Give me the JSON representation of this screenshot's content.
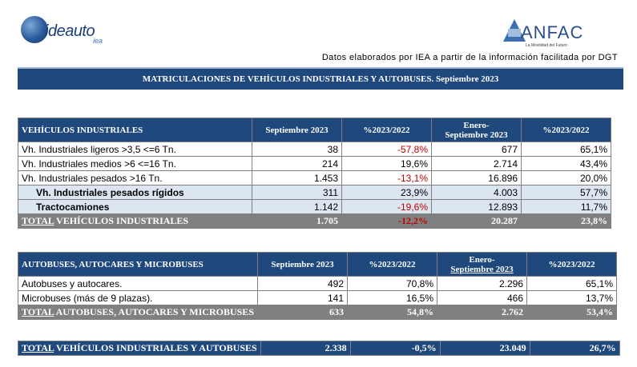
{
  "logos": {
    "left_brand": "ideauto",
    "left_sub": "iea",
    "right_brand": "ANFAC",
    "right_tag": "La Movilidad del Futuro"
  },
  "source_note": "Datos elaborados por IEA a partir de la información facilitada por DGT",
  "banner_title": "MATRICULACIONES DE VEHÍCULOS INDUSTRIALES Y AUTOBUSES.  Septiembre 2023",
  "table1": {
    "headers": [
      "VEHÍCULOS INDUSTRIALES",
      "Septiembre 2023",
      "%2023/2022",
      "Enero-Septiembre 2023",
      "%2023/2022"
    ],
    "header_ene_line1": "Enero-",
    "header_ene_line2": "Septiembre 2023",
    "rows": [
      {
        "label": "Vh. Industriales ligeros >3,5 <=6 Tn.",
        "sep": "38",
        "pct": "-57,8%",
        "ene": "677",
        "pct2": "65,1%"
      },
      {
        "label": "Vh. Industriales medios >6  <=16 Tn.",
        "sep": "214",
        "pct": "19,6%",
        "ene": "2.714",
        "pct2": "43,4%"
      },
      {
        "label": "Vh. Industriales  pesados >16 Tn.",
        "sep": "1.453",
        "pct": "-13,1%",
        "ene": "16.896",
        "pct2": "20,0%"
      },
      {
        "label": "Vh. Industriales pesados rígidos",
        "sep": "311",
        "pct": "23,9%",
        "ene": "4.003",
        "pct2": "57,7%"
      },
      {
        "label": "Tractocamiones",
        "sep": "1.142",
        "pct": "-19,6%",
        "ene": "12.893",
        "pct2": "11,7%"
      }
    ],
    "total": {
      "label_a": "TOTAL",
      "label_b": " VEHÍCULOS INDUSTRIALES",
      "sep": "1.705",
      "pct": "-12,2%",
      "ene": "20.287",
      "pct2": "23,8%"
    }
  },
  "table2": {
    "headers": [
      "AUTOBUSES, AUTOCARES Y MICROBUSES",
      "Septiembre 2023",
      "%2023/2022",
      "Enero-Septiembre 2023",
      "%2023/2022"
    ],
    "header_ene_line1": "Enero-",
    "header_ene_line2": "Septiembre 2023",
    "rows": [
      {
        "label": "Autobuses y autocares.",
        "sep": "492",
        "pct": "70,8%",
        "ene": "2.296",
        "pct2": "65,1%"
      },
      {
        "label": "Microbuses (más de 9 plazas).",
        "sep": "141",
        "pct": "16,5%",
        "ene": "466",
        "pct2": "13,7%"
      }
    ],
    "total": {
      "label_a": "TOTAL",
      "label_b": " AUTOBUSES, AUTOCARES Y MICROBUSES",
      "sep": "633",
      "pct": "54,8%",
      "ene": "2.762",
      "pct2": "53,4%"
    }
  },
  "grand_total": {
    "label_a": "TOTAL",
    "label_b": " VEHÍCULOS INDUSTRIALES Y AUTOBUSES",
    "sep": "2.338",
    "pct": "-0,5%",
    "ene": "23.049",
    "pct2": "26,7%"
  },
  "colors": {
    "header_blue": "#1f497d",
    "total_gray": "#808080",
    "negative_red": "#c00000",
    "sub_row": "#dce6f1"
  }
}
